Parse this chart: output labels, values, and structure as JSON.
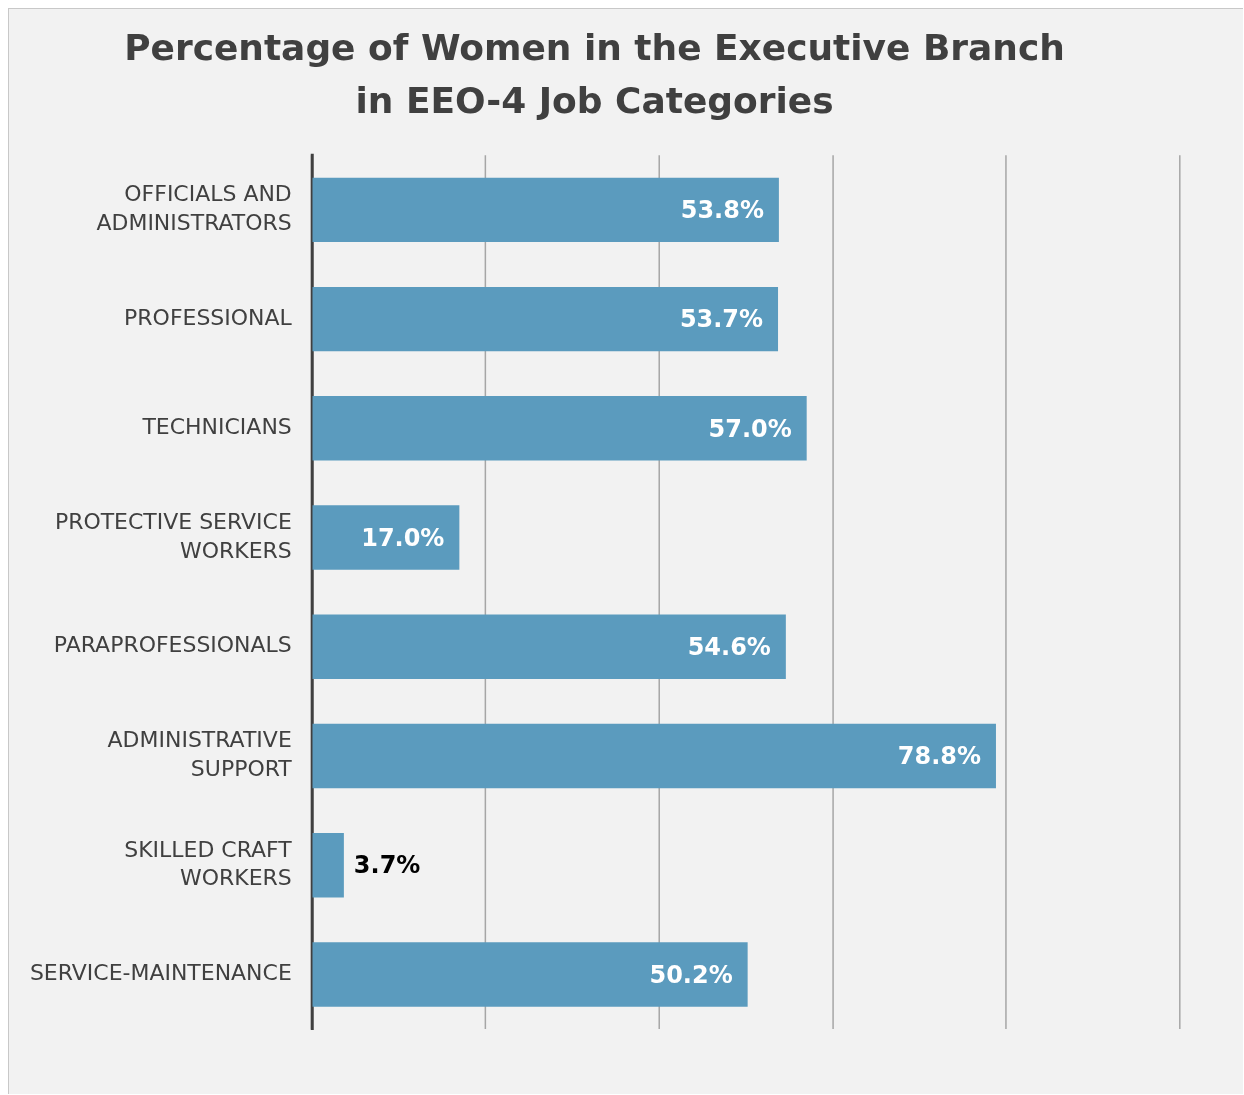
{
  "chart_data": {
    "type": "bar",
    "orientation": "horizontal",
    "title": "Percentage of Women in the Executive Branch in EEO-4 Job Categories",
    "categories": [
      "OFFICIALS AND ADMINISTRATORS",
      "PROFESSIONAL",
      "TECHNICIANS",
      "PROTECTIVE SERVICE WORKERS",
      "PARAPROFESSIONALS",
      "ADMINISTRATIVE SUPPORT",
      "SKILLED CRAFT WORKERS",
      "SERVICE-MAINTENANCE"
    ],
    "values": [
      53.8,
      53.7,
      57.0,
      17.0,
      54.6,
      78.8,
      3.7,
      50.2
    ],
    "value_labels": [
      "53.8%",
      "53.7%",
      "57.0%",
      "17.0%",
      "54.6%",
      "78.8%",
      "3.7%",
      "50.2%"
    ],
    "color": "#5b9bbe",
    "xlim": [
      0,
      100
    ],
    "xticks": [
      {
        "value": 0,
        "label": null
      },
      {
        "value": 20,
        "label": null
      },
      {
        "value": 40,
        "label": null
      },
      {
        "value": 60,
        "label": null
      },
      {
        "value": 80,
        "label": null
      },
      {
        "value": 100,
        "label": null
      }
    ],
    "grid": "x",
    "tick_labels": "y",
    "legend": false
  }
}
